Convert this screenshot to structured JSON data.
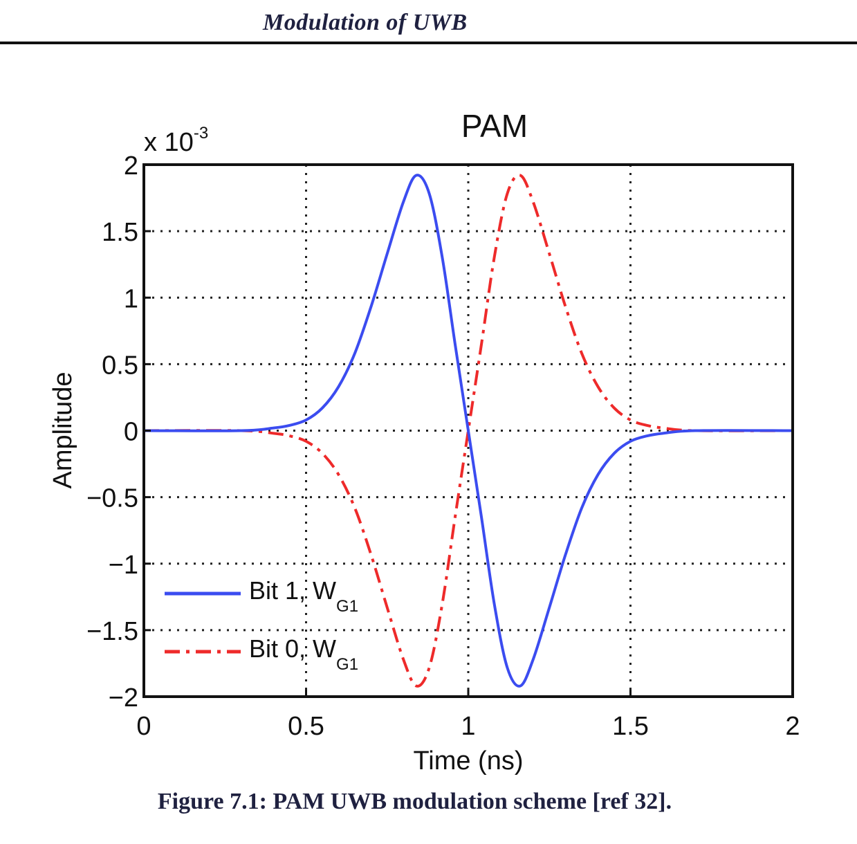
{
  "page_header": "Modulation of UWB",
  "caption": "Figure 7.1: PAM UWB modulation scheme [ref 32].",
  "chart_data": {
    "type": "line",
    "title": "PAM",
    "xlabel": "Time (ns)",
    "ylabel": "Amplitude",
    "exponent_label": "x 10",
    "exponent_power": "-3",
    "xlim": [
      0,
      2
    ],
    "ylim": [
      -2,
      2
    ],
    "y_scale_factor": 0.001,
    "x_ticks": [
      0,
      0.5,
      1,
      1.5,
      2
    ],
    "x_tick_labels": [
      "0",
      "0.5",
      "1",
      "1.5",
      "2"
    ],
    "y_ticks": [
      2,
      1.5,
      1,
      0.5,
      0,
      -0.5,
      -1,
      -1.5,
      -2
    ],
    "y_tick_labels": [
      "2",
      "1.5",
      "1",
      "0.5",
      "0",
      "−0.5",
      "−1",
      "−1.5",
      "−2"
    ],
    "grid": true,
    "legend_position": "bottom-left",
    "series": [
      {
        "name": "Bit 1, W",
        "name_subscript": "G1",
        "color": "#3b4cf0",
        "style": "solid",
        "x": [
          0,
          0.3,
          0.4,
          0.45,
          0.5,
          0.55,
          0.6,
          0.65,
          0.7,
          0.75,
          0.8,
          0.84,
          0.88,
          0.92,
          0.96,
          1.0,
          1.04,
          1.08,
          1.12,
          1.16,
          1.2,
          1.25,
          1.3,
          1.35,
          1.4,
          1.45,
          1.5,
          1.55,
          1.6,
          1.7,
          2.0
        ],
        "y": [
          0,
          0,
          0.02,
          0.04,
          0.08,
          0.17,
          0.33,
          0.58,
          0.93,
          1.33,
          1.72,
          1.92,
          1.78,
          1.3,
          0.64,
          0,
          -0.64,
          -1.3,
          -1.78,
          -1.92,
          -1.72,
          -1.33,
          -0.93,
          -0.58,
          -0.33,
          -0.17,
          -0.08,
          -0.04,
          -0.02,
          0,
          0
        ]
      },
      {
        "name": "Bit 0, W",
        "name_subscript": "G1",
        "color": "#ee2a2a",
        "style": "dashdot",
        "x": [
          0,
          0.3,
          0.4,
          0.45,
          0.5,
          0.55,
          0.6,
          0.65,
          0.7,
          0.75,
          0.8,
          0.84,
          0.88,
          0.92,
          0.96,
          1.0,
          1.04,
          1.08,
          1.12,
          1.16,
          1.2,
          1.25,
          1.3,
          1.35,
          1.4,
          1.45,
          1.5,
          1.55,
          1.6,
          1.7,
          2.0
        ],
        "y": [
          0,
          0,
          -0.02,
          -0.04,
          -0.08,
          -0.17,
          -0.33,
          -0.58,
          -0.93,
          -1.33,
          -1.72,
          -1.92,
          -1.78,
          -1.3,
          -0.64,
          0,
          0.64,
          1.3,
          1.78,
          1.92,
          1.72,
          1.33,
          0.93,
          0.58,
          0.33,
          0.17,
          0.08,
          0.04,
          0.02,
          0,
          0
        ]
      }
    ]
  }
}
